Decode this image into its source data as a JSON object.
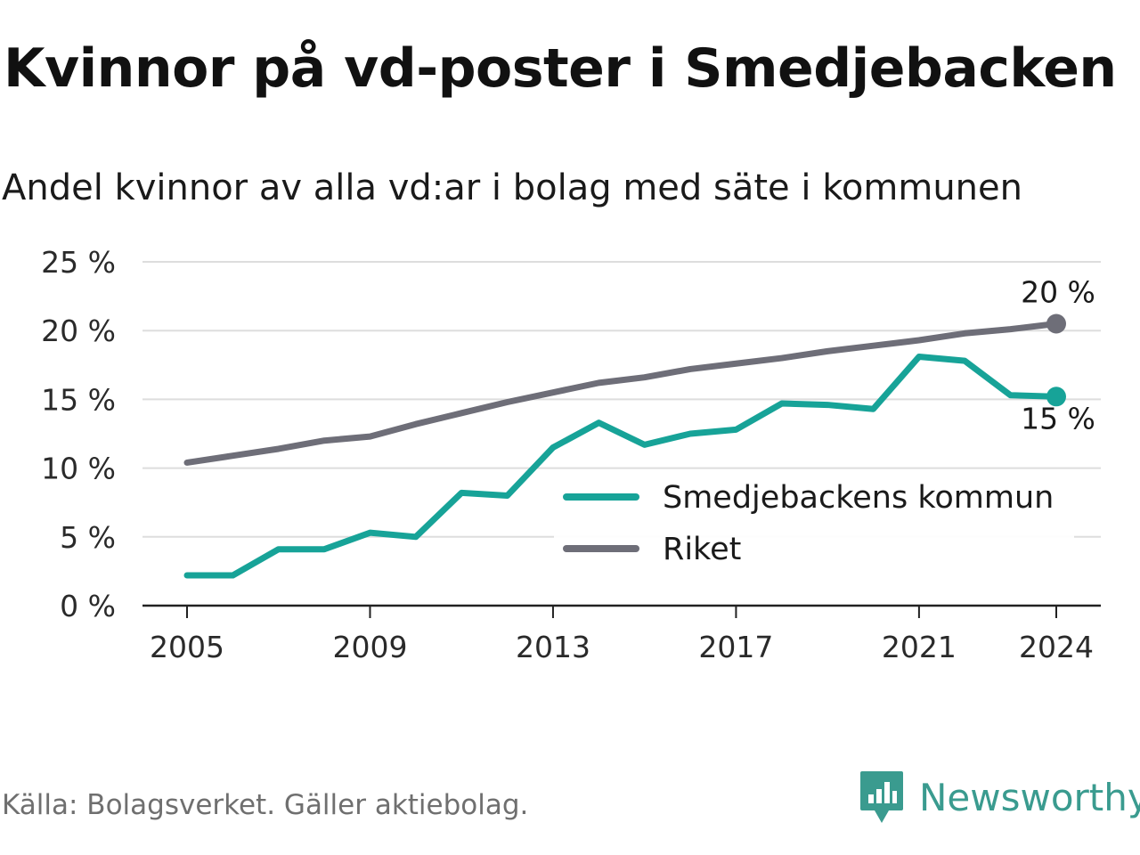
{
  "title": "Kvinnor på vd-poster i Smedjebacken",
  "subtitle": "Andel kvinnor av alla vd:ar i bolag med säte i kommunen",
  "footer": "Källa: Bolagsverket. Gäller aktiebolag.",
  "brand": {
    "name": "Newsworthy",
    "icon": "newsworthy-logo-icon",
    "color": "#3a9b8f"
  },
  "chart_data": {
    "type": "line",
    "x": [
      2005,
      2006,
      2007,
      2008,
      2009,
      2010,
      2011,
      2012,
      2013,
      2014,
      2015,
      2016,
      2017,
      2018,
      2019,
      2020,
      2021,
      2022,
      2023,
      2024
    ],
    "xticks": [
      "2005",
      "2009",
      "2013",
      "2017",
      "2021",
      "2024"
    ],
    "yticks": [
      "0 %",
      "5 %",
      "10 %",
      "15 %",
      "20 %",
      "25 %"
    ],
    "ylim": [
      0,
      25
    ],
    "grid": true,
    "legend_position": "bottom-right",
    "series": [
      {
        "name": "Smedjebackens kommun",
        "color": "#17a398",
        "end_label": "15 %",
        "values": [
          2.2,
          2.2,
          4.1,
          4.1,
          5.3,
          5.0,
          8.2,
          8.0,
          11.5,
          13.3,
          11.7,
          12.5,
          12.8,
          14.7,
          14.6,
          14.3,
          18.1,
          17.8,
          15.3,
          15.2
        ]
      },
      {
        "name": "Riket",
        "color": "#6e6e78",
        "end_label": "20 %",
        "values": [
          10.4,
          10.9,
          11.4,
          12.0,
          12.3,
          13.2,
          14.0,
          14.8,
          15.5,
          16.2,
          16.6,
          17.2,
          17.6,
          18.0,
          18.5,
          18.9,
          19.3,
          19.8,
          20.1,
          20.5
        ]
      }
    ]
  }
}
